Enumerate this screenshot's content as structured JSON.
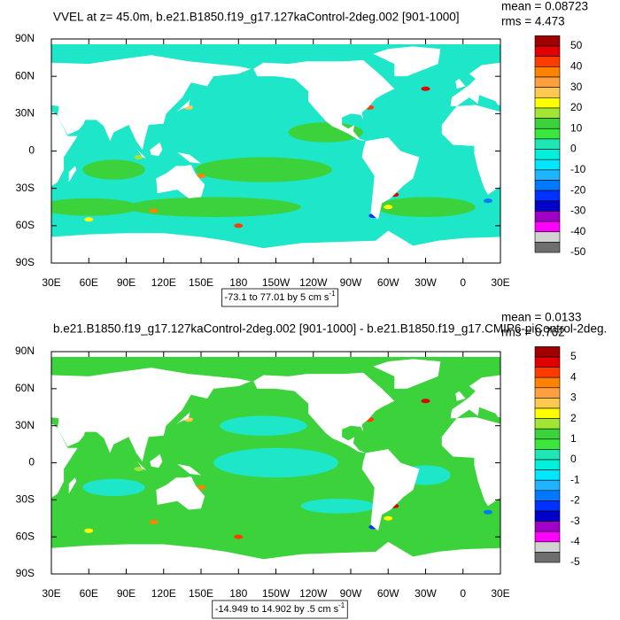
{
  "panels": [
    {
      "title": "VVEL at z=  45.0m, b.e21.B1850.f19_g17.127kaControl-2deg.002 [901-1000]",
      "stats": [
        "mean = 0.08723",
        "rms = 4.473"
      ],
      "lat_labels": [
        "90N",
        "60N",
        "30N",
        "0",
        "30S",
        "60S",
        "90S"
      ],
      "lon_labels": [
        "30E",
        "60E",
        "90E",
        "120E",
        "150E",
        "180",
        "150W",
        "120W",
        "90W",
        "60W",
        "30W",
        "0",
        "30E"
      ],
      "colorbar_labels": [
        "50",
        "40",
        "30",
        "20",
        "10",
        "0",
        "-10",
        "-20",
        "-30",
        "-40",
        "-50"
      ],
      "range_label": "-73.1 to 77.01 by 5 cm s",
      "range_unit_exponent": "-1"
    },
    {
      "title": "b.e21.B1850.f19_g17.127kaControl-2deg.002 [901-1000] - b.e21.B1850.f19_g17.CMIP6-piControl-2deg.",
      "stats": [
        "mean = 0.0133",
        "rms = 0.762"
      ],
      "lat_labels": [
        "90N",
        "60N",
        "30N",
        "0",
        "30S",
        "60S",
        "90S"
      ],
      "lon_labels": [
        "30E",
        "60E",
        "90E",
        "120E",
        "150E",
        "180",
        "150W",
        "120W",
        "90W",
        "60W",
        "30W",
        "0",
        "30E"
      ],
      "colorbar_labels": [
        "5",
        "4",
        "3",
        "2",
        "1",
        "0",
        "-1",
        "-2",
        "-3",
        "-4",
        "-5"
      ],
      "range_label": "-14.949 to 14.902 by .5 cm s",
      "range_unit_exponent": "-1"
    }
  ]
}
